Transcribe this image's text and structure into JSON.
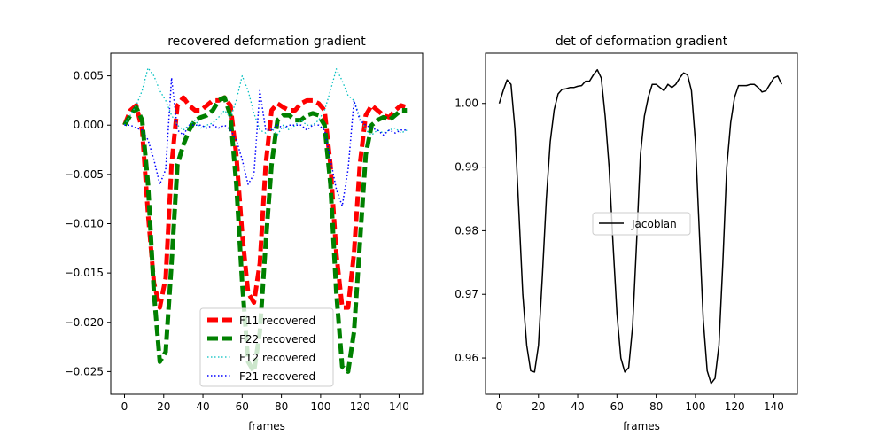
{
  "chart_data": [
    {
      "type": "line",
      "title": "recovered deformation gradient",
      "xlabel": "frames",
      "ylabel": "",
      "xlim": [
        -7,
        152
      ],
      "ylim": [
        -0.0273,
        0.0073
      ],
      "xticks": [
        0,
        20,
        40,
        60,
        80,
        100,
        120,
        140
      ],
      "xtick_labels": [
        "0",
        "20",
        "40",
        "60",
        "80",
        "100",
        "120",
        "140"
      ],
      "yticks": [
        0.005,
        0.0,
        -0.005,
        -0.01,
        -0.015,
        -0.02,
        -0.025
      ],
      "ytick_labels": [
        "0.005",
        "0.000",
        "−0.005",
        "−0.010",
        "−0.015",
        "−0.020",
        "−0.025"
      ],
      "grid": false,
      "legend_position": "lower-center",
      "series": [
        {
          "name": "F11 recovered",
          "color": "#ff0000",
          "style": "dashed",
          "linewidth": 5,
          "x": [
            0,
            3,
            6,
            9,
            12,
            15,
            18,
            21,
            24,
            27,
            30,
            33,
            36,
            39,
            42,
            45,
            48,
            51,
            54,
            57,
            60,
            63,
            66,
            69,
            72,
            75,
            78,
            81,
            84,
            87,
            90,
            93,
            96,
            99,
            102,
            105,
            108,
            111,
            114,
            117,
            120,
            123,
            126,
            129,
            132,
            135,
            138,
            141,
            144
          ],
          "y": [
            0.0,
            0.0015,
            0.002,
            -0.0005,
            -0.009,
            -0.016,
            -0.0185,
            -0.0155,
            -0.004,
            0.002,
            0.0028,
            0.002,
            0.0015,
            0.0015,
            0.002,
            0.0025,
            0.0025,
            0.0028,
            0.002,
            -0.003,
            -0.011,
            -0.017,
            -0.018,
            -0.014,
            -0.004,
            0.0015,
            0.0022,
            0.0018,
            0.0015,
            0.0015,
            0.0022,
            0.0025,
            0.0025,
            0.0022,
            0.0015,
            -0.004,
            -0.013,
            -0.0185,
            -0.0185,
            -0.013,
            -0.004,
            0.001,
            0.002,
            0.0015,
            0.001,
            0.0008,
            0.0015,
            0.002,
            0.0018
          ]
        },
        {
          "name": "F22 recovered",
          "color": "#008000",
          "style": "dashed",
          "linewidth": 5,
          "x": [
            0,
            3,
            6,
            9,
            12,
            15,
            18,
            21,
            24,
            27,
            30,
            33,
            36,
            39,
            42,
            45,
            48,
            51,
            54,
            57,
            60,
            63,
            66,
            69,
            72,
            75,
            78,
            81,
            84,
            87,
            90,
            93,
            96,
            99,
            102,
            105,
            108,
            111,
            114,
            117,
            120,
            123,
            126,
            129,
            132,
            135,
            138,
            141,
            144
          ],
          "y": [
            0.0,
            0.001,
            0.0018,
            0.0005,
            -0.006,
            -0.017,
            -0.024,
            -0.023,
            -0.014,
            -0.004,
            -0.002,
            -0.0005,
            0.0005,
            0.0008,
            0.001,
            0.0015,
            0.0025,
            0.0028,
            0.001,
            -0.006,
            -0.016,
            -0.024,
            -0.025,
            -0.021,
            -0.012,
            -0.004,
            0.0005,
            0.001,
            0.001,
            0.0005,
            0.0005,
            0.001,
            0.0012,
            0.001,
            0.0,
            -0.006,
            -0.017,
            -0.0245,
            -0.025,
            -0.021,
            -0.012,
            -0.003,
            0.0,
            0.0005,
            0.0008,
            0.0005,
            0.001,
            0.0015,
            0.0015
          ]
        },
        {
          "name": "F12 recovered",
          "color": "#00bfbf",
          "style": "dotted",
          "linewidth": 1.3,
          "x": [
            0,
            3,
            6,
            9,
            12,
            15,
            18,
            21,
            24,
            27,
            30,
            33,
            36,
            39,
            42,
            45,
            48,
            51,
            54,
            57,
            60,
            63,
            66,
            69,
            72,
            75,
            78,
            81,
            84,
            87,
            90,
            93,
            96,
            99,
            102,
            105,
            108,
            111,
            114,
            117,
            120,
            123,
            126,
            129,
            132,
            135,
            138,
            141,
            144
          ],
          "y": [
            0.0,
            0.001,
            0.002,
            0.0035,
            0.0058,
            0.005,
            0.0035,
            0.0025,
            0.001,
            0.0,
            -0.0005,
            0.0,
            0.0005,
            -0.0003,
            0.0,
            0.0002,
            0.0008,
            0.0015,
            0.0008,
            0.0025,
            0.005,
            0.0035,
            0.0012,
            -0.0005,
            -0.0008,
            -0.0003,
            -0.001,
            0.0,
            -0.0005,
            0.0,
            0.0005,
            0.0,
            0.0,
            0.0005,
            0.0015,
            0.0035,
            0.0057,
            0.0045,
            0.003,
            0.0025,
            0.0008,
            -0.0005,
            -0.001,
            -0.0005,
            -0.0008,
            -0.0005,
            -0.0003,
            -0.0008,
            -0.0005
          ]
        },
        {
          "name": "F21 recovered",
          "color": "#0000ff",
          "style": "dotted",
          "linewidth": 1.5,
          "x": [
            0,
            3,
            6,
            9,
            12,
            15,
            18,
            21,
            24,
            27,
            30,
            33,
            36,
            39,
            42,
            45,
            48,
            51,
            54,
            57,
            60,
            63,
            66,
            69,
            72,
            75,
            78,
            81,
            84,
            87,
            90,
            93,
            96,
            99,
            102,
            105,
            108,
            111,
            114,
            117,
            120,
            123,
            126,
            129,
            132,
            135,
            138,
            141,
            144
          ],
          "y": [
            0.0,
            0.0,
            -0.0003,
            -0.0005,
            -0.0015,
            -0.0035,
            -0.006,
            -0.0045,
            0.0048,
            -0.0005,
            -0.001,
            0.0,
            0.0,
            0.0,
            -0.0003,
            0.0,
            -0.0003,
            0.0,
            -0.0005,
            -0.0015,
            -0.0035,
            -0.006,
            -0.005,
            0.0035,
            -0.0005,
            -0.0005,
            0.0,
            -0.0003,
            0.0,
            0.0,
            0.0,
            -0.0005,
            0.0,
            0.0,
            -0.0005,
            -0.0035,
            -0.0065,
            -0.0082,
            -0.0045,
            0.0025,
            0.0005,
            0.0,
            -0.0003,
            -0.0005,
            -0.001,
            -0.0005,
            -0.0008,
            -0.0005,
            -0.0005
          ]
        }
      ]
    },
    {
      "type": "line",
      "title": "det of deformation gradient",
      "xlabel": "frames",
      "ylabel": "",
      "xlim": [
        -7,
        152
      ],
      "ylim": [
        0.9543,
        1.0079
      ],
      "xticks": [
        0,
        20,
        40,
        60,
        80,
        100,
        120,
        140
      ],
      "xtick_labels": [
        "0",
        "20",
        "40",
        "60",
        "80",
        "100",
        "120",
        "140"
      ],
      "yticks": [
        1.0,
        0.99,
        0.98,
        0.97,
        0.96
      ],
      "ytick_labels": [
        "1.00",
        "0.99",
        "0.98",
        "0.97",
        "0.96"
      ],
      "grid": false,
      "legend_position": "center",
      "series": [
        {
          "name": "Jacobian",
          "color": "#000000",
          "style": "solid",
          "linewidth": 1.5,
          "x": [
            0,
            2,
            4,
            6,
            8,
            10,
            12,
            14,
            16,
            18,
            20,
            22,
            24,
            26,
            28,
            30,
            32,
            34,
            36,
            38,
            40,
            42,
            44,
            46,
            48,
            50,
            52,
            54,
            56,
            58,
            60,
            62,
            64,
            66,
            68,
            70,
            72,
            74,
            76,
            78,
            80,
            82,
            84,
            86,
            88,
            90,
            92,
            94,
            96,
            98,
            100,
            102,
            104,
            106,
            108,
            110,
            112,
            114,
            116,
            118,
            120,
            122,
            124,
            126,
            128,
            130,
            132,
            134,
            136,
            138,
            140,
            142,
            144
          ],
          "y": [
            1.0,
            1.002,
            1.0037,
            1.003,
            0.996,
            0.983,
            0.97,
            0.962,
            0.958,
            0.9578,
            0.962,
            0.973,
            0.985,
            0.994,
            0.999,
            1.0015,
            1.0022,
            1.0023,
            1.0025,
            1.0025,
            1.0027,
            1.0028,
            1.0035,
            1.0035,
            1.0045,
            1.0053,
            1.004,
            0.998,
            0.99,
            0.978,
            0.967,
            0.96,
            0.9578,
            0.9585,
            0.965,
            0.978,
            0.992,
            0.998,
            1.001,
            1.003,
            1.003,
            1.0025,
            1.002,
            1.003,
            1.0025,
            1.003,
            1.004,
            1.0048,
            1.0045,
            1.002,
            0.994,
            0.98,
            0.966,
            0.958,
            0.956,
            0.9568,
            0.962,
            0.975,
            0.99,
            0.997,
            1.001,
            1.0028,
            1.0028,
            1.0028,
            1.003,
            1.003,
            1.0025,
            1.0018,
            1.002,
            1.003,
            1.004,
            1.0043,
            1.003
          ]
        }
      ]
    }
  ]
}
